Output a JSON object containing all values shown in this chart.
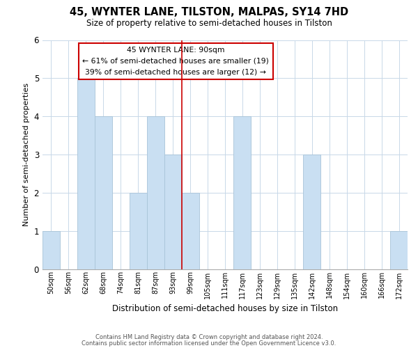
{
  "title": "45, WYNTER LANE, TILSTON, MALPAS, SY14 7HD",
  "subtitle": "Size of property relative to semi-detached houses in Tilston",
  "xlabel": "Distribution of semi-detached houses by size in Tilston",
  "ylabel": "Number of semi-detached properties",
  "bin_labels": [
    "50sqm",
    "56sqm",
    "62sqm",
    "68sqm",
    "74sqm",
    "81sqm",
    "87sqm",
    "93sqm",
    "99sqm",
    "105sqm",
    "111sqm",
    "117sqm",
    "123sqm",
    "129sqm",
    "135sqm",
    "142sqm",
    "148sqm",
    "154sqm",
    "160sqm",
    "166sqm",
    "172sqm"
  ],
  "bar_heights": [
    1,
    0,
    5,
    4,
    0,
    2,
    4,
    3,
    2,
    0,
    0,
    4,
    0,
    0,
    0,
    3,
    0,
    0,
    0,
    0,
    1
  ],
  "highlight_bar_index": 7,
  "bar_color": "#c9dff2",
  "highlight_edge_color": "#cc0000",
  "bar_edge_color": "#a8c4d8",
  "ylim": [
    0,
    6
  ],
  "yticks": [
    0,
    1,
    2,
    3,
    4,
    5,
    6
  ],
  "annotation_title": "45 WYNTER LANE: 90sqm",
  "annotation_line1": "← 61% of semi-detached houses are smaller (19)",
  "annotation_line2": "39% of semi-detached houses are larger (12) →",
  "annotation_box_color": "#ffffff",
  "annotation_box_edge": "#cc0000",
  "footer1": "Contains HM Land Registry data © Crown copyright and database right 2024.",
  "footer2": "Contains public sector information licensed under the Open Government Licence v3.0.",
  "bg_color": "#ffffff",
  "grid_color": "#c8d8e8"
}
